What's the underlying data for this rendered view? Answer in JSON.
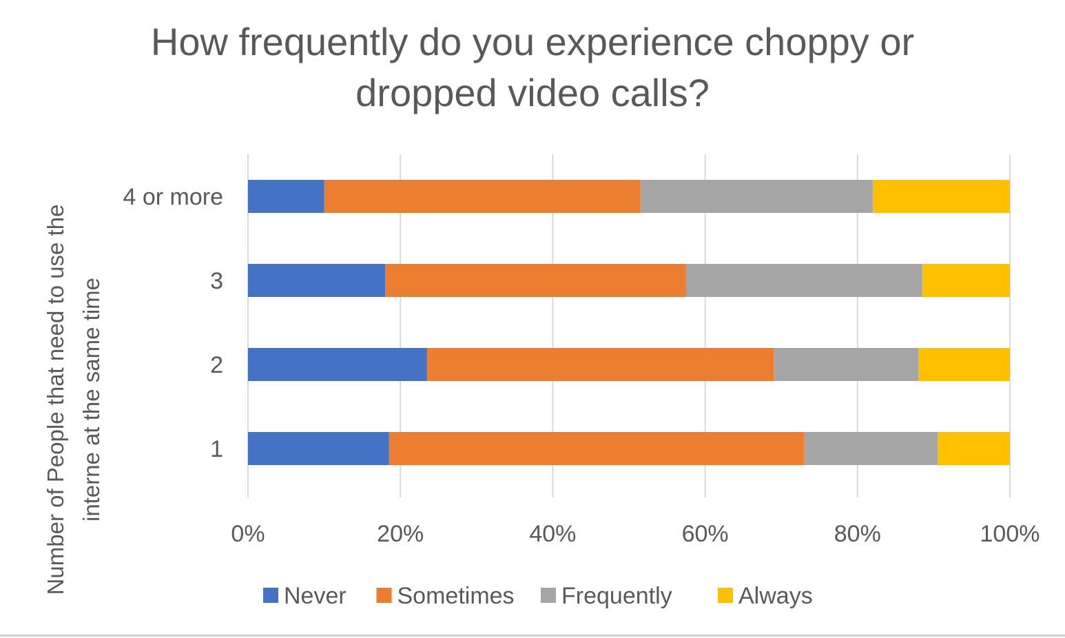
{
  "chart_data": {
    "type": "bar",
    "orientation": "horizontal",
    "stacked": "percent",
    "title": "How frequently do you experience choppy or dropped video calls?",
    "title_lines": [
      "How frequently do you experience choppy or",
      "dropped video calls?"
    ],
    "xlabel": "",
    "ylabel_lines": [
      "Number  of People that need to use the",
      "interne at the same time"
    ],
    "categories": [
      "1",
      "2",
      "3",
      "4 or more"
    ],
    "x_ticks": [
      "0%",
      "20%",
      "40%",
      "60%",
      "80%",
      "100%"
    ],
    "xlim": [
      0,
      100
    ],
    "grid": true,
    "legend_position": "bottom",
    "series": [
      {
        "name": "Never",
        "color": "#4472C4",
        "values": [
          18.5,
          23.5,
          18.0,
          10.0
        ]
      },
      {
        "name": "Sometimes",
        "color": "#ED7D31",
        "values": [
          54.5,
          45.5,
          39.5,
          41.5
        ]
      },
      {
        "name": "Frequently",
        "color": "#A5A5A5",
        "values": [
          17.5,
          19.0,
          31.0,
          30.5
        ]
      },
      {
        "name": "Always",
        "color": "#FFC000",
        "values": [
          9.5,
          12.0,
          11.5,
          18.0
        ]
      }
    ]
  }
}
